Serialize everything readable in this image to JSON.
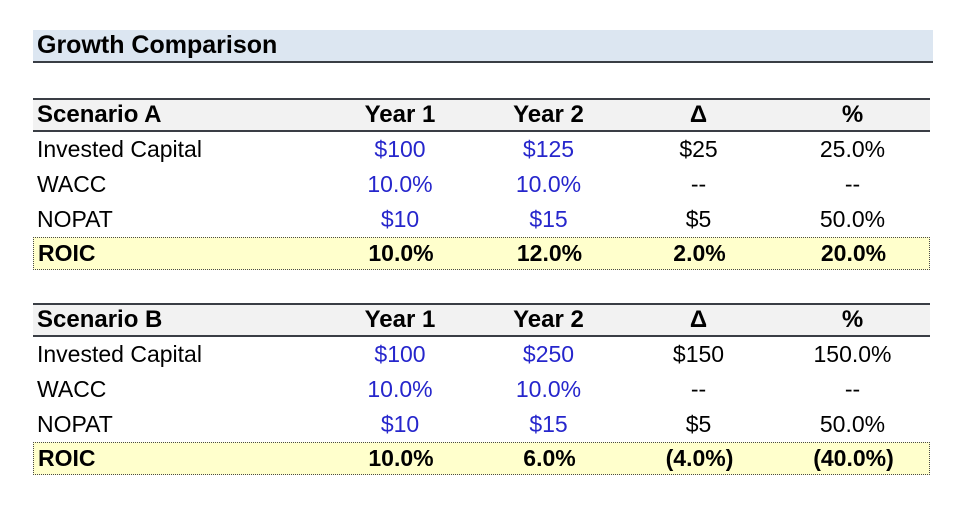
{
  "title": "Growth Comparison",
  "colors": {
    "title_band_bg": "#dce6f1",
    "header_bg": "#f2f2f2",
    "total_bg": "#ffffcc",
    "input_text": "#2626cc",
    "border_dark": "#3a3e45"
  },
  "tables": [
    {
      "name": "Scenario A",
      "columns": [
        "Year 1",
        "Year 2",
        "Δ",
        "%"
      ],
      "rows": [
        {
          "label": "Invested Capital",
          "year1": "$100",
          "year2": "$125",
          "delta": "$25",
          "pct": "25.0%"
        },
        {
          "label": "WACC",
          "year1": "10.0%",
          "year2": "10.0%",
          "delta": "--",
          "pct": "--"
        },
        {
          "label": "NOPAT",
          "year1": "$10",
          "year2": "$15",
          "delta": "$5",
          "pct": "50.0%"
        }
      ],
      "total": {
        "label": "ROIC",
        "year1": "10.0%",
        "year2": "12.0%",
        "delta": "2.0%",
        "pct": "20.0%"
      }
    },
    {
      "name": "Scenario B",
      "columns": [
        "Year 1",
        "Year 2",
        "Δ",
        "%"
      ],
      "rows": [
        {
          "label": "Invested Capital",
          "year1": "$100",
          "year2": "$250",
          "delta": "$150",
          "pct": "150.0%"
        },
        {
          "label": "WACC",
          "year1": "10.0%",
          "year2": "10.0%",
          "delta": "--",
          "pct": "--"
        },
        {
          "label": "NOPAT",
          "year1": "$10",
          "year2": "$15",
          "delta": "$5",
          "pct": "50.0%"
        }
      ],
      "total": {
        "label": "ROIC",
        "year1": "10.0%",
        "year2": "6.0%",
        "delta": "(4.0%)",
        "pct": "(40.0%)"
      }
    }
  ]
}
